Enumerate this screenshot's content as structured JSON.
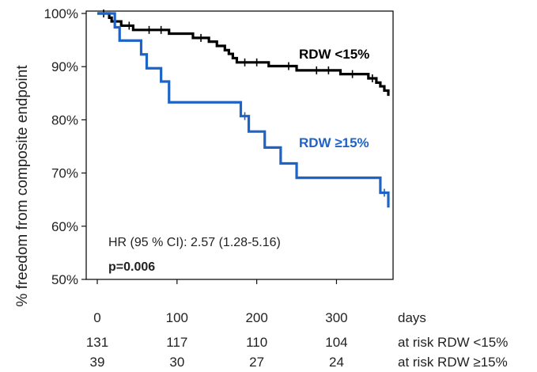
{
  "chart_data": {
    "type": "line",
    "subtype": "kaplan-meier",
    "ylabel": "% freedom  from composite endpoint",
    "xlabel": "days",
    "xlim": [
      0,
      365
    ],
    "ylim": [
      50,
      100
    ],
    "xticks": [
      0,
      100,
      200,
      300
    ],
    "xtick_labels": [
      "0",
      "100",
      "200",
      "300"
    ],
    "yticks": [
      100,
      90,
      80,
      70,
      60,
      50
    ],
    "ytick_labels": [
      "100%",
      "90%",
      "80%",
      "70%",
      "60%",
      "50%"
    ],
    "series": [
      {
        "name": "RDW <15%",
        "label": "RDW <15%",
        "color": "#000000",
        "steps": [
          [
            0,
            100
          ],
          [
            12,
            100
          ],
          [
            15,
            99.2
          ],
          [
            18,
            98.5
          ],
          [
            30,
            97.7
          ],
          [
            45,
            96.9
          ],
          [
            90,
            96.2
          ],
          [
            120,
            95.4
          ],
          [
            140,
            94.7
          ],
          [
            150,
            93.9
          ],
          [
            160,
            93.1
          ],
          [
            165,
            92.4
          ],
          [
            170,
            91.6
          ],
          [
            175,
            90.8
          ],
          [
            215,
            90.1
          ],
          [
            250,
            89.3
          ],
          [
            305,
            88.6
          ],
          [
            340,
            87.8
          ],
          [
            350,
            87.0
          ],
          [
            355,
            86.3
          ],
          [
            360,
            85.5
          ],
          [
            365,
            84.5
          ]
        ],
        "censor_times": [
          8,
          40,
          65,
          80,
          130,
          185,
          200,
          240,
          275,
          290,
          320,
          345
        ]
      },
      {
        "name": "RDW ≥15%",
        "label": "RDW ≥15%",
        "color": "#1e63c8",
        "steps": [
          [
            0,
            100
          ],
          [
            18,
            100
          ],
          [
            22,
            97.4
          ],
          [
            28,
            94.9
          ],
          [
            55,
            92.3
          ],
          [
            62,
            89.7
          ],
          [
            80,
            87.2
          ],
          [
            90,
            83.3
          ],
          [
            110,
            83.3
          ],
          [
            180,
            80.7
          ],
          [
            190,
            77.8
          ],
          [
            210,
            74.8
          ],
          [
            230,
            71.8
          ],
          [
            250,
            69.1
          ],
          [
            355,
            66.3
          ],
          [
            365,
            63.5
          ]
        ],
        "censor_times": [
          185,
          360
        ]
      }
    ],
    "annotations": [
      "HR (95 % CI): 2.57 (1.28-5.16)",
      "p=0.006"
    ],
    "at_risk": {
      "times": [
        0,
        100,
        200,
        300
      ],
      "rows": [
        {
          "label": "at risk RDW <15%",
          "values": [
            "131",
            "117",
            "110",
            "104"
          ]
        },
        {
          "label": "at risk RDW ≥15%",
          "values": [
            "39",
            "30",
            "27",
            "24"
          ]
        }
      ]
    }
  }
}
